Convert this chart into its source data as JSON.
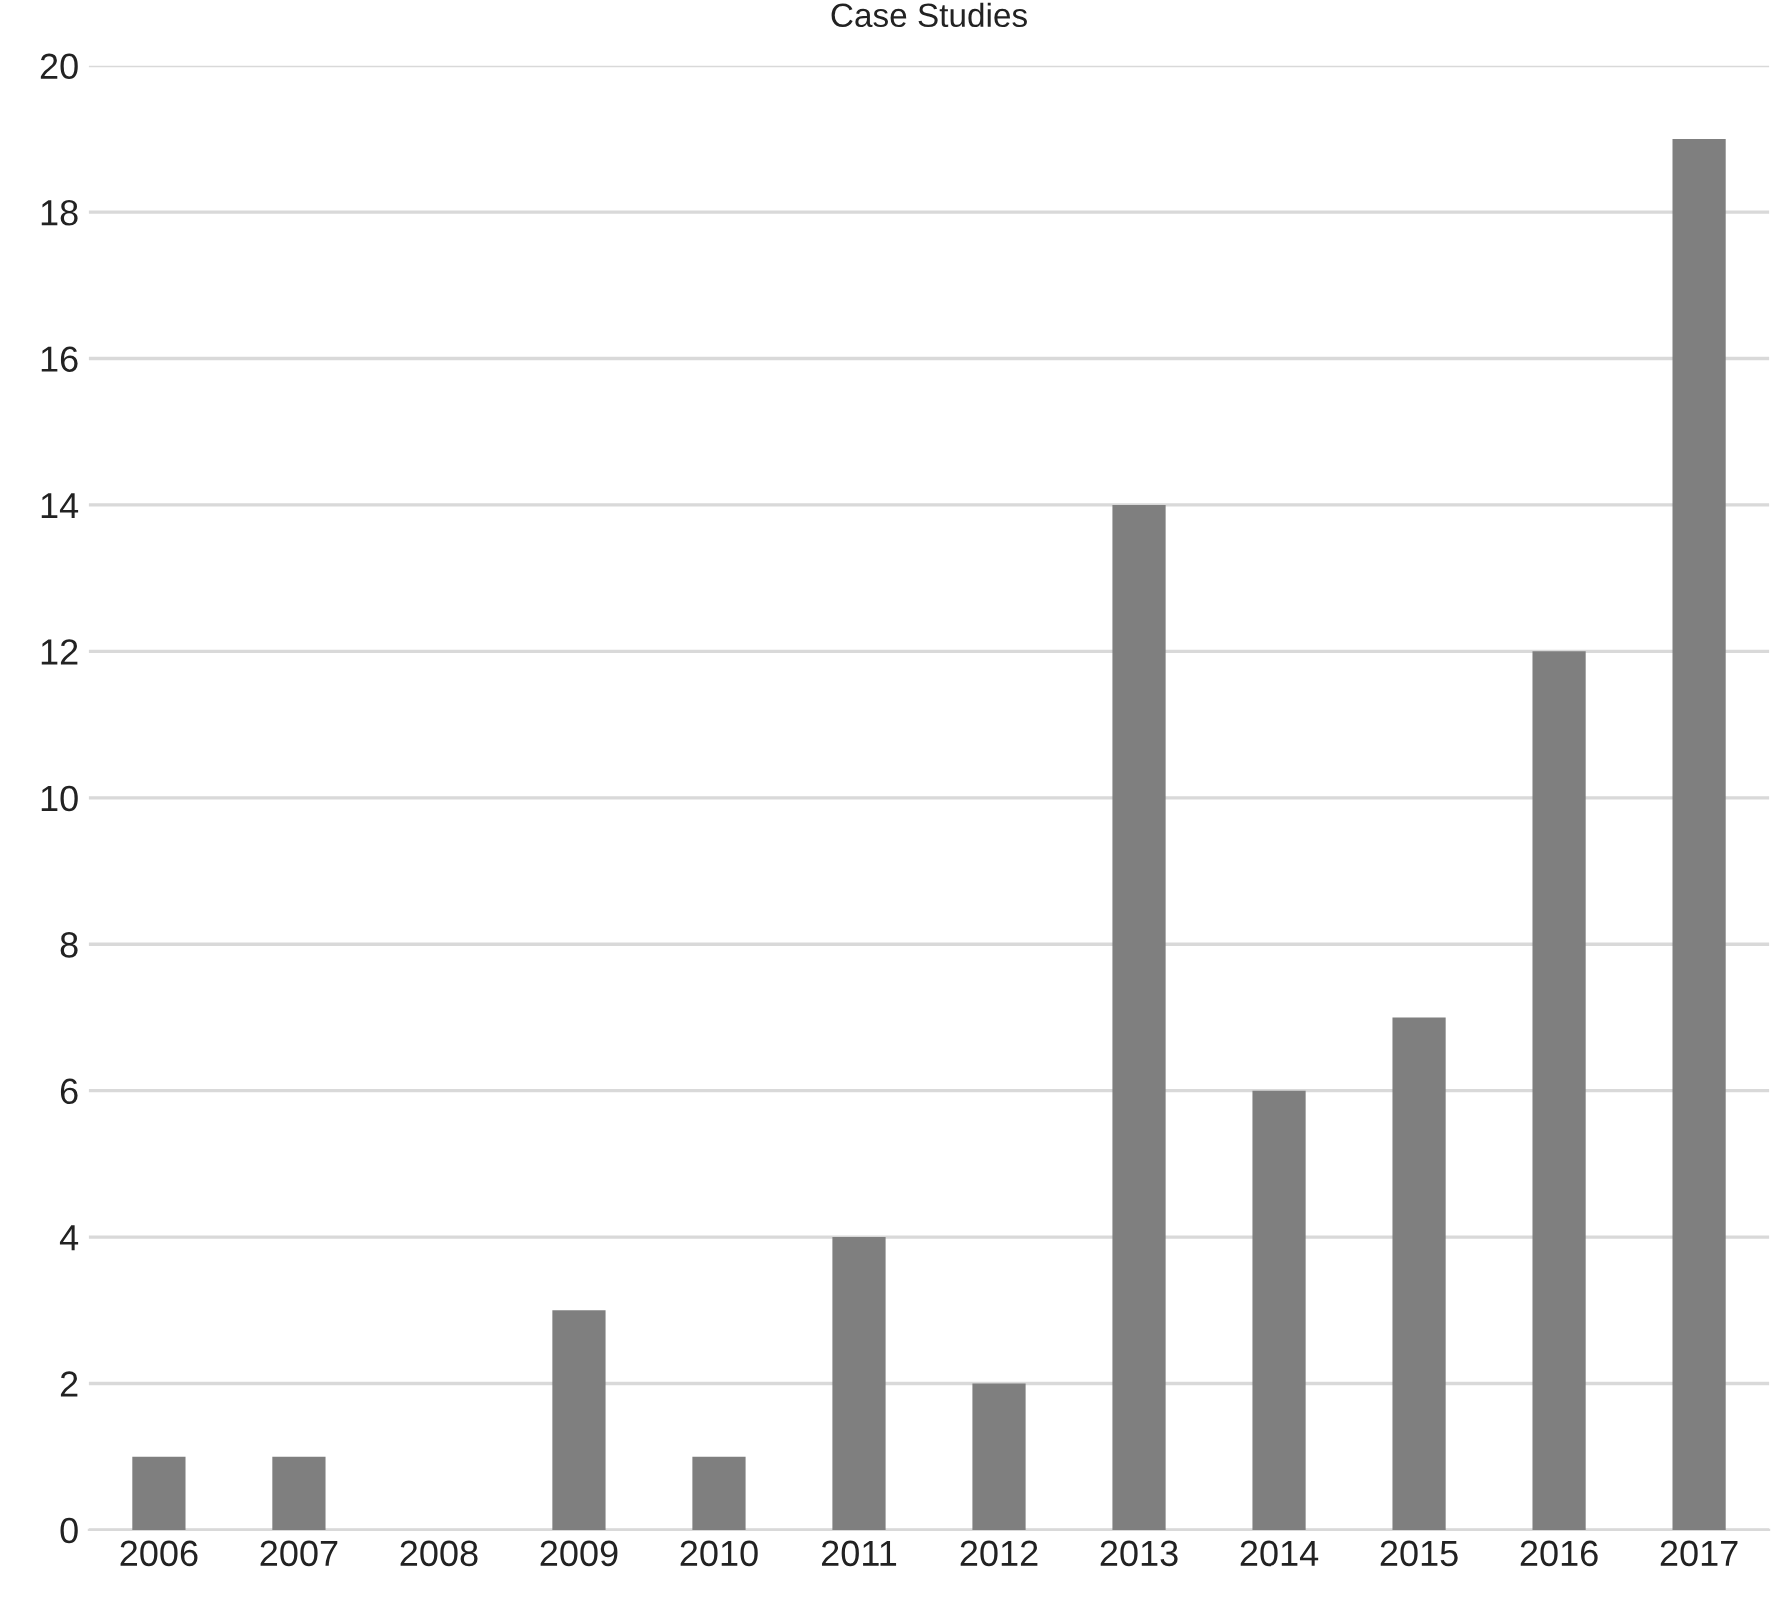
{
  "chart_data": {
    "type": "bar",
    "title": "Case Studies",
    "categories": [
      "2006",
      "2007",
      "2008",
      "2009",
      "2010",
      "2011",
      "2012",
      "2013",
      "2014",
      "2015",
      "2016",
      "2017"
    ],
    "values": [
      1,
      1,
      0,
      3,
      1,
      4,
      2,
      14,
      6,
      7,
      12,
      19
    ],
    "color": "#7f7f7f",
    "ylim": [
      0,
      20
    ],
    "yticks": [
      0,
      2,
      4,
      6,
      8,
      10,
      12,
      14,
      16,
      18,
      20
    ],
    "grid": "y",
    "legend": false
  }
}
